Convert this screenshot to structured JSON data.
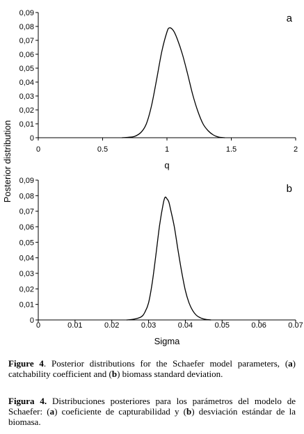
{
  "figure": {
    "ylabel": "Posterior distribution"
  },
  "chart_data": [
    {
      "type": "line",
      "panel_letter": "a",
      "xlabel": "q",
      "ylabel": "Posterior distribution",
      "xlim": [
        0,
        2
      ],
      "ylim": [
        0,
        0.09
      ],
      "xticks": [
        0,
        0.5,
        1,
        1.5,
        2
      ],
      "xtick_labels": [
        "0",
        "0.5",
        "1",
        "1.5",
        "2"
      ],
      "yticks": [
        0,
        0.01,
        0.02,
        0.03,
        0.04,
        0.05,
        0.06,
        0.07,
        0.08,
        0.09
      ],
      "ytick_labels": [
        "0",
        "0,01",
        "0,02",
        "0,03",
        "0,04",
        "0,05",
        "0,06",
        "0,07",
        "0,08",
        "0,09"
      ],
      "grid": false,
      "series": [
        {
          "x": [
            0.65,
            0.7,
            0.75,
            0.8,
            0.84,
            0.88,
            0.92,
            0.96,
            1.0,
            1.02,
            1.05,
            1.08,
            1.12,
            1.16,
            1.2,
            1.24,
            1.28,
            1.32,
            1.36,
            1.4,
            1.45
          ],
          "y": [
            0,
            0.0003,
            0.001,
            0.004,
            0.01,
            0.023,
            0.042,
            0.062,
            0.076,
            0.079,
            0.077,
            0.071,
            0.06,
            0.046,
            0.031,
            0.019,
            0.01,
            0.005,
            0.002,
            0.0005,
            0
          ]
        }
      ]
    },
    {
      "type": "line",
      "panel_letter": "b",
      "xlabel": "Sigma",
      "ylabel": "",
      "xlim": [
        0,
        0.07
      ],
      "ylim": [
        0,
        0.09
      ],
      "xticks": [
        0,
        0.01,
        0.02,
        0.03,
        0.04,
        0.05,
        0.06,
        0.07
      ],
      "xtick_labels": [
        "0",
        "0.01",
        "0.02",
        "0.03",
        "0.04",
        "0.05",
        "0.06",
        "0.07"
      ],
      "yticks": [
        0,
        0.01,
        0.02,
        0.03,
        0.04,
        0.05,
        0.06,
        0.07,
        0.08,
        0.09
      ],
      "ytick_labels": [
        "0",
        "0,01",
        "0,02",
        "0,03",
        "0,04",
        "0,05",
        "0,06",
        "0,07",
        "0,08",
        "0,09"
      ],
      "grid": false,
      "series": [
        {
          "x": [
            0.024,
            0.026,
            0.028,
            0.029,
            0.03,
            0.031,
            0.032,
            0.033,
            0.034,
            0.0345,
            0.035,
            0.0355,
            0.036,
            0.037,
            0.038,
            0.039,
            0.04,
            0.041,
            0.042,
            0.043,
            0.044,
            0.045,
            0.046,
            0.047
          ],
          "y": [
            0,
            0.0005,
            0.002,
            0.005,
            0.011,
            0.024,
            0.042,
            0.061,
            0.075,
            0.079,
            0.078,
            0.076,
            0.071,
            0.06,
            0.045,
            0.031,
            0.019,
            0.011,
            0.006,
            0.003,
            0.0015,
            0.0006,
            0.0002,
            0
          ]
        }
      ]
    }
  ],
  "captions": {
    "en": {
      "label": "Figure 4",
      "text_1": ". Posterior distributions for the Schaefer model parameters, (",
      "a": "a",
      "text_2": ") catchability coefficient and (",
      "b": "b",
      "text_3": ") biomass standard deviation."
    },
    "es": {
      "label": "Figura 4.",
      "text_1": " Distribuciones posteriores para los parámetros del modelo de Schaefer: (",
      "a": "a",
      "text_2": ") coeficiente de capturabilidad y (",
      "b": "b",
      "text_3": ") desviación estándar de la biomasa."
    }
  }
}
